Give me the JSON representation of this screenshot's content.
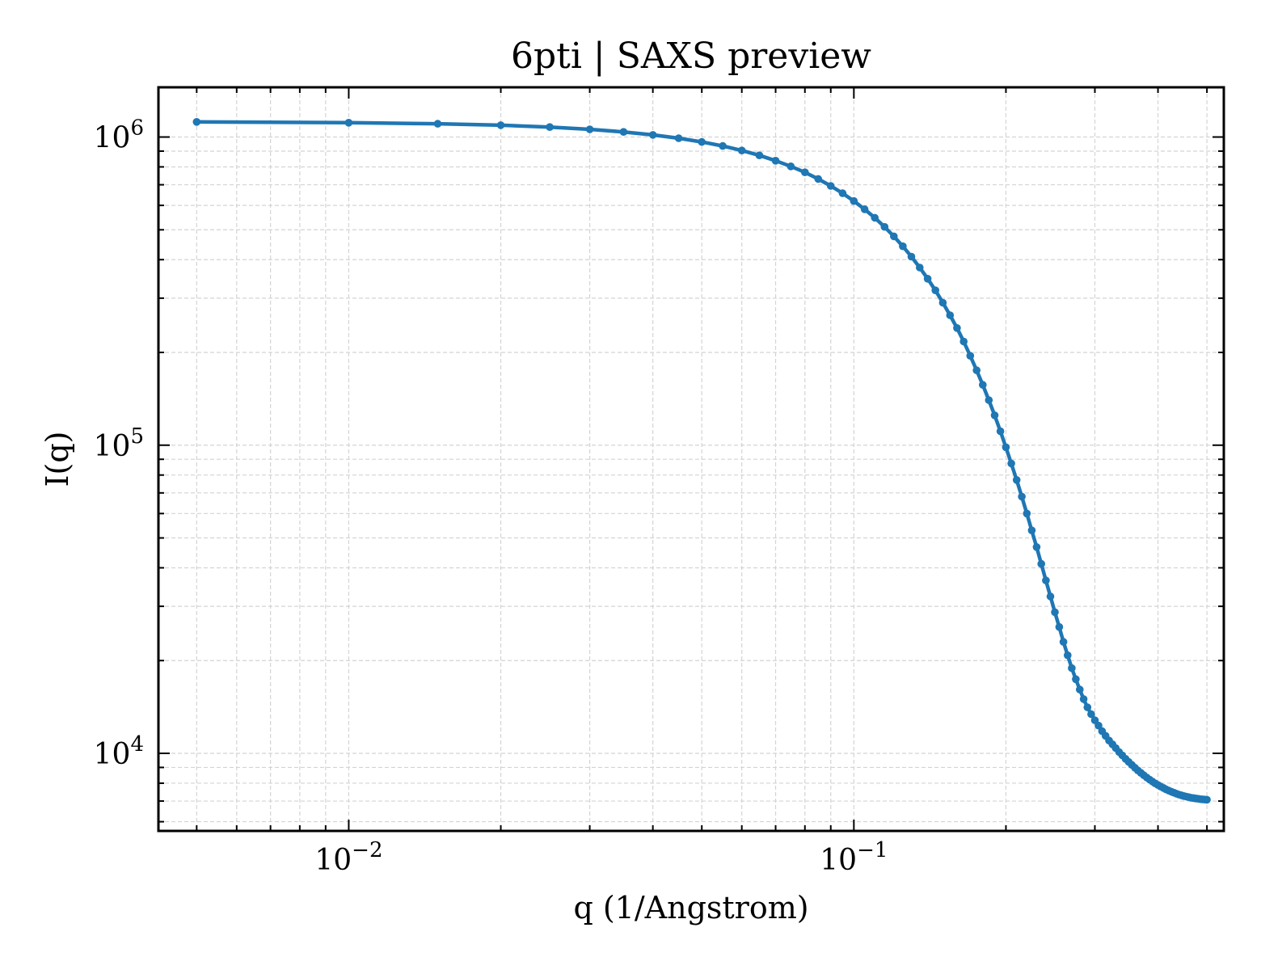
{
  "chart_data": {
    "type": "line",
    "title": "6pti | SAXS preview",
    "xlabel": "q (1/Angstrom)",
    "ylabel": "I(q)",
    "x_scale": "log",
    "y_scale": "log",
    "xlim": [
      0.0042,
      0.54
    ],
    "ylim": [
      5600,
      1450000
    ],
    "x_ticks": [
      {
        "value": 0.01,
        "label": "10",
        "exponent": "−2"
      },
      {
        "value": 0.1,
        "label": "10",
        "exponent": "−1"
      }
    ],
    "y_ticks": [
      {
        "value": 10000,
        "label": "10",
        "exponent": "4"
      },
      {
        "value": 100000,
        "label": "10",
        "exponent": "5"
      },
      {
        "value": 1000000,
        "label": "10",
        "exponent": "6"
      }
    ],
    "grid": true,
    "legend": "none",
    "series": [
      {
        "color": "#1f77b4",
        "marker": "circle",
        "x": [
          0.005,
          0.01,
          0.015,
          0.02,
          0.025,
          0.03,
          0.035,
          0.04,
          0.045,
          0.05,
          0.055,
          0.06,
          0.065,
          0.07,
          0.075,
          0.08,
          0.085,
          0.09,
          0.095,
          0.1,
          0.105,
          0.11,
          0.115,
          0.12,
          0.125,
          0.13,
          0.135,
          0.14,
          0.145,
          0.15,
          0.155,
          0.16,
          0.165,
          0.17,
          0.175,
          0.18,
          0.185,
          0.19,
          0.195,
          0.2,
          0.205,
          0.21,
          0.215,
          0.22,
          0.225,
          0.23,
          0.235,
          0.24,
          0.245,
          0.25,
          0.255,
          0.26,
          0.265,
          0.27,
          0.275,
          0.28,
          0.285,
          0.29,
          0.295,
          0.3,
          0.305,
          0.31,
          0.315,
          0.32,
          0.325,
          0.33,
          0.335,
          0.34,
          0.345,
          0.35,
          0.355,
          0.36,
          0.365,
          0.37,
          0.375,
          0.38,
          0.385,
          0.39,
          0.395,
          0.4,
          0.405,
          0.41,
          0.415,
          0.42,
          0.425,
          0.43,
          0.435,
          0.44,
          0.445,
          0.45,
          0.455,
          0.46,
          0.465,
          0.47,
          0.475,
          0.48,
          0.485,
          0.49,
          0.495,
          0.5
        ],
        "y": [
          1120000,
          1113000,
          1104000,
          1092000,
          1077000,
          1059000,
          1039000,
          1016000,
          991000,
          964000,
          935000,
          904000,
          872000,
          838000,
          803000,
          768000,
          731000,
          694000,
          657000,
          620000,
          583000,
          547000,
          511000,
          476000,
          442000,
          409000,
          377000,
          347000,
          318000,
          290000,
          264000,
          240000,
          217000,
          195000,
          175000,
          157000,
          140000,
          125000,
          111000,
          98500,
          87200,
          77100,
          68100,
          60000,
          52900,
          46700,
          41200,
          36400,
          32300,
          28700,
          25700,
          23000,
          20800,
          18900,
          17400,
          16100,
          15000,
          14100,
          13400,
          12800,
          12300,
          11800,
          11400,
          11000,
          10700,
          10400,
          10100,
          9850,
          9600,
          9380,
          9170,
          8980,
          8800,
          8640,
          8490,
          8350,
          8220,
          8100,
          7990,
          7890,
          7800,
          7720,
          7640,
          7570,
          7510,
          7450,
          7400,
          7350,
          7310,
          7270,
          7240,
          7210,
          7180,
          7160,
          7140,
          7120,
          7100,
          7090,
          7080,
          7070
        ]
      }
    ]
  }
}
